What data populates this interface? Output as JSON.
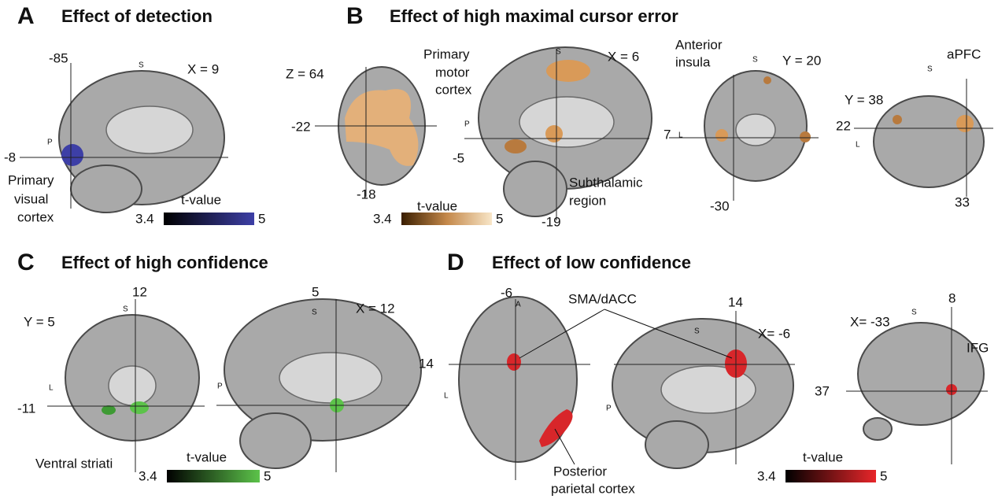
{
  "panels": [
    {
      "letter": "A",
      "title": "Effect of detection",
      "labels": [
        "-85",
        "X = 9",
        "S",
        "P",
        "-8",
        "Primary",
        "visual",
        "cortex"
      ],
      "colorbar": {
        "title": "t-value",
        "min": "3.4",
        "max": "5"
      }
    },
    {
      "letter": "B",
      "title": "Effect of high maximal cursor error",
      "labels": [
        "Z = 64",
        "Primary",
        "motor",
        "cortex",
        "-22",
        "-18",
        "S",
        "X = 6",
        "P",
        "-5",
        "Subthalamic",
        "region",
        "-19",
        "Anterior",
        "insula",
        "S",
        "Y = 20",
        "7",
        "L",
        "-30",
        "aPFC",
        "S",
        "Y = 38",
        "22",
        "L",
        "33"
      ],
      "colorbar": {
        "title": "t-value",
        "min": "3.4",
        "max": "5"
      }
    },
    {
      "letter": "C",
      "title": "Effect of high confidence",
      "labels": [
        "12",
        "S",
        "Y = 5",
        "L",
        "-11",
        "Ventral striati",
        "5",
        "X = 12",
        "S",
        "P"
      ],
      "colorbar": {
        "title": "t-value",
        "min": "3.4",
        "max": "5"
      }
    },
    {
      "letter": "D",
      "title": "Effect of low confidence",
      "labels": [
        "-6",
        "A",
        "SMA/dACC",
        "14",
        "L",
        "Posterior",
        "parietal cortex",
        "14",
        "S",
        "X= -6",
        "P",
        "X= -33",
        "S",
        "8",
        "IFG",
        "37"
      ],
      "colorbar": {
        "title": "t-value",
        "min": "3.4",
        "max": "5"
      }
    }
  ]
}
